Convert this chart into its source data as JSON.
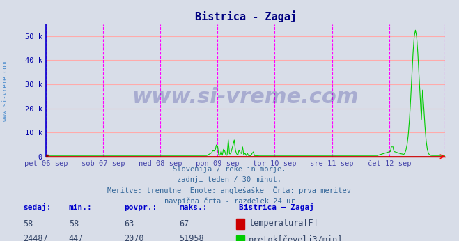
{
  "title": "Bistrica - Zagaj",
  "bg_color": "#d8dde8",
  "plot_bg_color": "#d8dde8",
  "grid_color": "#ffaaaa",
  "vline_color": "#ff00ff",
  "ylabel_color": "#0000aa",
  "title_color": "#000080",
  "ylim": [
    0,
    55000
  ],
  "yticks": [
    0,
    10000,
    20000,
    30000,
    40000,
    50000
  ],
  "ytick_labels": [
    "0",
    "10 k",
    "20 k",
    "30 k",
    "40 k",
    "50 k"
  ],
  "xlabel_color": "#4444aa",
  "n_points": 336,
  "days": [
    "pet 06 sep",
    "sob 07 sep",
    "ned 08 sep",
    "pon 09 sep",
    "tor 10 sep",
    "sre 11 sep",
    "čet 12 sep"
  ],
  "day_positions": [
    0,
    48,
    96,
    144,
    192,
    240,
    288
  ],
  "temp_color": "#cc0000",
  "flow_color": "#00cc00",
  "temp_min": 58,
  "temp_max": 67,
  "temp_avg": 63,
  "temp_curr": 58,
  "flow_min": 447,
  "flow_max": 51958,
  "flow_avg": 2070,
  "flow_curr": 24487,
  "subtitle_lines": [
    "Slovenija / reke in morje.",
    "zadnji teden / 30 minut.",
    "Meritve: trenutne  Enote: anglešaške  Črta: prva meritev",
    "navpična črta - razdelek 24 ur"
  ],
  "table_header": [
    "sedaj:",
    "min.:",
    "povpr.:",
    "maks.:",
    "Bistrica – Zagaj"
  ],
  "table_row1": [
    "58",
    "58",
    "63",
    "67",
    "temperatura[F]"
  ],
  "table_row2": [
    "24487",
    "447",
    "2070",
    "51958",
    "pretok[čevelj3/min]"
  ],
  "watermark_text": "www.si-vreme.com",
  "watermark_color": "#1a1a8c",
  "watermark_alpha": 0.25,
  "left_label": "www.si-vreme.com",
  "left_label_color": "#4488cc"
}
